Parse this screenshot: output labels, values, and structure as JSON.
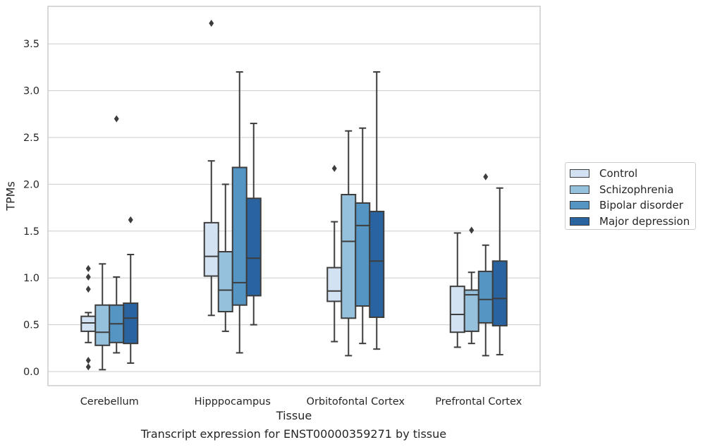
{
  "chart_data": {
    "type": "boxplot",
    "xlabel": "Tissue",
    "ylabel": "TPMs",
    "caption": "Transcript expression for ENST00000359271 by tissue",
    "ylim": [
      -0.15,
      3.9
    ],
    "yticks": [
      "0.0",
      "0.5",
      "1.0",
      "1.5",
      "2.0",
      "2.5",
      "3.0",
      "3.5"
    ],
    "ytick_values": [
      0,
      0.5,
      1.0,
      1.5,
      2.0,
      2.5,
      3.0,
      3.5
    ],
    "grid": "horizontal",
    "legend_position": "right",
    "categories": [
      "Cerebellum",
      "Hipppocampus",
      "Orbitofontal Cortex",
      "Prefrontal Cortex"
    ],
    "series": [
      {
        "name": "Control",
        "color": "#d3e2f2",
        "boxes": [
          {
            "whisker_low": 0.31,
            "q1": 0.43,
            "median": 0.52,
            "q3": 0.59,
            "whisker_high": 0.63,
            "outliers": [
              1.1,
              1.01,
              0.88,
              0.12,
              0.05
            ]
          },
          {
            "whisker_low": 0.6,
            "q1": 1.02,
            "median": 1.23,
            "q3": 1.59,
            "whisker_high": 2.25,
            "outliers": [
              3.72
            ]
          },
          {
            "whisker_low": 0.32,
            "q1": 0.75,
            "median": 0.86,
            "q3": 1.11,
            "whisker_high": 1.6,
            "outliers": [
              2.17
            ]
          },
          {
            "whisker_low": 0.26,
            "q1": 0.42,
            "median": 0.61,
            "q3": 0.91,
            "whisker_high": 1.48,
            "outliers": []
          }
        ]
      },
      {
        "name": "Schizophrenia",
        "color": "#95c1dc",
        "boxes": [
          {
            "whisker_low": 0.02,
            "q1": 0.28,
            "median": 0.42,
            "q3": 0.71,
            "whisker_high": 1.15,
            "outliers": []
          },
          {
            "whisker_low": 0.43,
            "q1": 0.64,
            "median": 0.87,
            "q3": 1.28,
            "whisker_high": 2.0,
            "outliers": []
          },
          {
            "whisker_low": 0.17,
            "q1": 0.57,
            "median": 1.39,
            "q3": 1.89,
            "whisker_high": 2.57,
            "outliers": []
          },
          {
            "whisker_low": 0.3,
            "q1": 0.43,
            "median": 0.82,
            "q3": 0.87,
            "whisker_high": 1.06,
            "outliers": [
              1.51
            ]
          }
        ]
      },
      {
        "name": "Bipolar disorder",
        "color": "#5495c4",
        "boxes": [
          {
            "whisker_low": 0.2,
            "q1": 0.31,
            "median": 0.51,
            "q3": 0.71,
            "whisker_high": 1.01,
            "outliers": [
              2.7
            ]
          },
          {
            "whisker_low": 0.2,
            "q1": 0.71,
            "median": 0.95,
            "q3": 2.18,
            "whisker_high": 3.2,
            "outliers": []
          },
          {
            "whisker_low": 0.3,
            "q1": 0.7,
            "median": 1.56,
            "q3": 1.8,
            "whisker_high": 2.6,
            "outliers": []
          },
          {
            "whisker_low": 0.17,
            "q1": 0.52,
            "median": 0.77,
            "q3": 1.07,
            "whisker_high": 1.35,
            "outliers": [
              2.08
            ]
          }
        ]
      },
      {
        "name": "Major depression",
        "color": "#2a64a0",
        "boxes": [
          {
            "whisker_low": 0.09,
            "q1": 0.3,
            "median": 0.57,
            "q3": 0.73,
            "whisker_high": 1.25,
            "outliers": [
              1.62
            ]
          },
          {
            "whisker_low": 0.5,
            "q1": 0.81,
            "median": 1.21,
            "q3": 1.85,
            "whisker_high": 2.65,
            "outliers": []
          },
          {
            "whisker_low": 0.24,
            "q1": 0.58,
            "median": 1.18,
            "q3": 1.71,
            "whisker_high": 3.2,
            "outliers": []
          },
          {
            "whisker_low": 0.18,
            "q1": 0.49,
            "median": 0.78,
            "q3": 1.18,
            "whisker_high": 1.96,
            "outliers": []
          }
        ]
      }
    ]
  }
}
